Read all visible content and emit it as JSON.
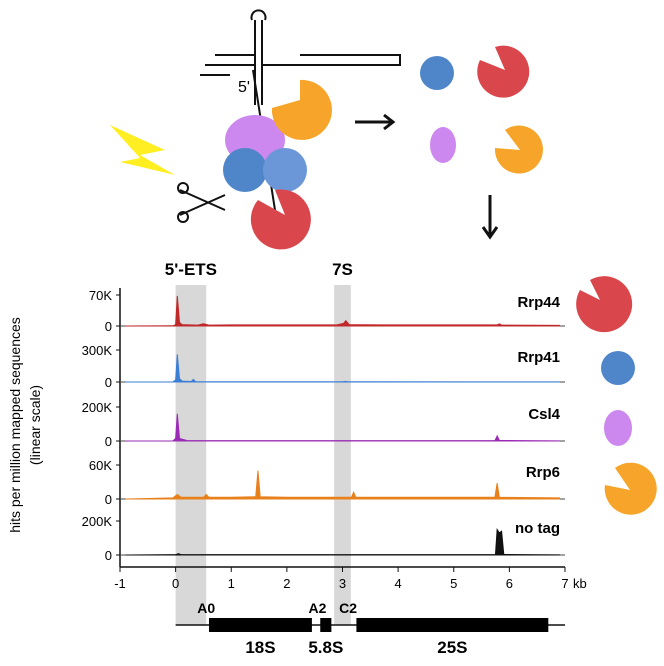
{
  "diagram_labels": {
    "five_prime": "5'"
  },
  "y_label": [
    "hits per million mapped sequences",
    "(linear scale)"
  ],
  "bands": [
    {
      "label": "5'-ETS",
      "range": [
        0,
        0.55
      ]
    },
    {
      "label": "7S",
      "range": [
        2.85,
        3.15
      ]
    }
  ],
  "x_axis": {
    "xlim": [
      -1,
      7
    ],
    "xticks": [
      -1,
      0,
      1,
      2,
      3,
      4,
      5,
      6,
      7
    ],
    "unit": "kb"
  },
  "gene_map": {
    "extent": [
      0,
      7
    ],
    "regions": [
      {
        "label": "18S",
        "range": [
          0.6,
          2.45
        ]
      },
      {
        "label": "5.8S",
        "range": [
          2.6,
          2.8
        ]
      },
      {
        "label": "25S",
        "range": [
          3.25,
          6.7
        ]
      }
    ],
    "sites": [
      {
        "label": "A0",
        "pos": 0.55
      },
      {
        "label": "A2",
        "pos": 2.55
      },
      {
        "label": "C2",
        "pos": 3.1
      }
    ]
  },
  "chart_data": [
    {
      "type": "area",
      "label": "Rrp44",
      "color": "#c0282a",
      "ylim": [
        0,
        70000
      ],
      "yticks": [
        0,
        {
          "value": 70000,
          "label": "70K"
        }
      ],
      "x": [
        -0.9,
        -0.05,
        0.0,
        0.03,
        0.07,
        0.12,
        0.4,
        0.5,
        0.6,
        1.0,
        2.0,
        2.9,
        3.02,
        3.06,
        3.12,
        4.0,
        5.0,
        5.78,
        5.82,
        5.86,
        6.9
      ],
      "values": [
        0,
        500,
        3000,
        68000,
        8000,
        3000,
        2000,
        5000,
        2000,
        2500,
        2500,
        2500,
        6000,
        12000,
        3000,
        2500,
        2500,
        2500,
        5000,
        2000,
        1500
      ]
    },
    {
      "type": "area",
      "label": "Rrp41",
      "color": "#3a7fd5",
      "ylim": [
        0,
        300000
      ],
      "yticks": [
        0,
        {
          "value": 300000,
          "label": "300K"
        }
      ],
      "x": [
        -0.9,
        -0.05,
        0.0,
        0.03,
        0.07,
        0.12,
        0.28,
        0.32,
        0.36,
        0.6,
        3.0,
        3.05,
        3.1,
        6.9
      ],
      "values": [
        0,
        1000,
        20000,
        260000,
        30000,
        8000,
        5000,
        25000,
        3000,
        2000,
        2000,
        6000,
        2000,
        1000
      ]
    },
    {
      "type": "area",
      "label": "Csl4",
      "color": "#9a2bb5",
      "ylim": [
        0,
        200000
      ],
      "yticks": [
        0,
        {
          "value": 200000,
          "label": "200K"
        }
      ],
      "x": [
        -0.9,
        -0.05,
        0.0,
        0.03,
        0.07,
        0.2,
        3.0,
        5.74,
        5.78,
        5.82,
        6.9
      ],
      "values": [
        0,
        1000,
        15000,
        160000,
        15000,
        3000,
        2000,
        2000,
        30000,
        3000,
        1000
      ]
    },
    {
      "type": "area",
      "label": "Rrp6",
      "color": "#e8801c",
      "ylim": [
        0,
        60000
      ],
      "yticks": [
        0,
        {
          "value": 60000,
          "label": "60K"
        }
      ],
      "x": [
        -0.9,
        -0.05,
        0.03,
        0.1,
        0.5,
        0.55,
        0.6,
        1.0,
        1.44,
        1.48,
        1.52,
        2.0,
        3.16,
        3.2,
        3.24,
        4.0,
        5.0,
        5.74,
        5.78,
        5.82,
        6.9
      ],
      "values": [
        0,
        2000,
        8000,
        3000,
        3000,
        8000,
        3000,
        3000,
        4000,
        50000,
        4000,
        3000,
        3000,
        12000,
        3000,
        3000,
        3000,
        3000,
        28000,
        3000,
        2000
      ]
    },
    {
      "type": "area",
      "label": "no tag",
      "color": "#111111",
      "ylim": [
        0,
        200000
      ],
      "yticks": [
        0,
        {
          "value": 200000,
          "label": "200K"
        }
      ],
      "x": [
        -0.9,
        0.0,
        0.05,
        0.1,
        1.5,
        3.0,
        5.75,
        5.78,
        5.82,
        5.86,
        5.9,
        6.9
      ],
      "values": [
        0,
        2000,
        8000,
        2000,
        2000,
        2000,
        3000,
        150000,
        130000,
        140000,
        3000,
        1000
      ]
    }
  ]
}
